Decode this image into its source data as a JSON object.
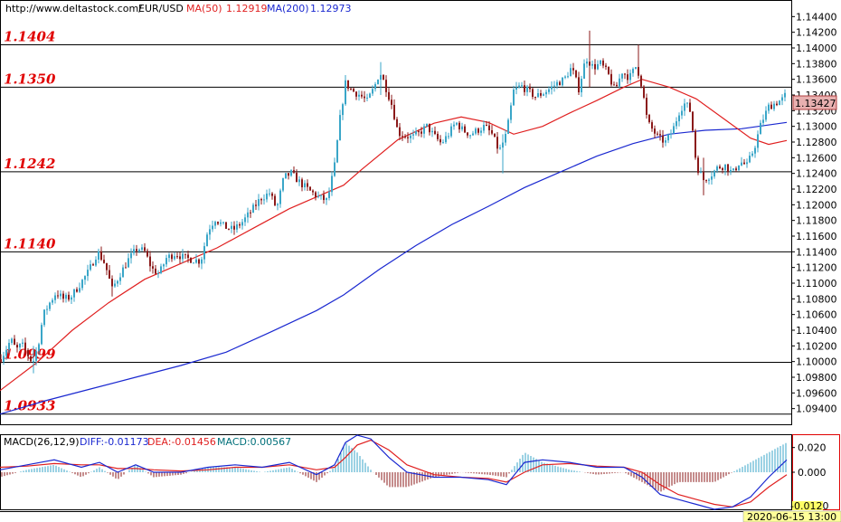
{
  "header": {
    "url": "http://www.deltastock.com/",
    "symbol": "EUR/USD",
    "ma50_label": "MA(50)",
    "ma50_value": "1.12919",
    "ma200_label": "MA(200)",
    "ma200_value": "1.12973"
  },
  "macd_header": {
    "name": "MACD(26,12,9)",
    "diff": "DIFF:-0.01173",
    "dea": "DEA:-0.01456",
    "macd": "MACD:0.00567"
  },
  "current_price_label": "1.13427",
  "timestamp": "2020-06-15 13:00",
  "macd_clip_label": "-0.0120",
  "colors": {
    "up": "#3aa6c8",
    "down": "#8b1a1a",
    "ma50": "#e02020",
    "ma200": "#1a28d0",
    "level_text": "#e00000",
    "price_box": "#e8b0b0",
    "ts_box": "#ffff99"
  },
  "chart_data": [
    {
      "type": "candlestick",
      "ylim": [
        1.092,
        1.146
      ],
      "yticks": [
        "1.14400",
        "1.14200",
        "1.14000",
        "1.13800",
        "1.13600",
        "1.13400",
        "1.13200",
        "1.13000",
        "1.12800",
        "1.12600",
        "1.12400",
        "1.12200",
        "1.12000",
        "1.11800",
        "1.11600",
        "1.11400",
        "1.11200",
        "1.11000",
        "1.10800",
        "1.10600",
        "1.10400",
        "1.10200",
        "1.10000",
        "1.09800",
        "1.09600",
        "1.09400"
      ],
      "levels": [
        {
          "label": "1.1404",
          "value": 1.1404
        },
        {
          "label": "1.1350",
          "value": 1.135
        },
        {
          "label": "1.1242",
          "value": 1.1242
        },
        {
          "label": "1.1140",
          "value": 1.114
        },
        {
          "label": "1.0999",
          "value": 1.0999
        },
        {
          "label": "1.0933",
          "value": 1.0933
        }
      ],
      "price_path": [
        [
          0,
          1.1003
        ],
        [
          5,
          1.1012
        ],
        [
          12,
          1.1028
        ],
        [
          18,
          1.1015
        ],
        [
          24,
          1.1022
        ],
        [
          30,
          1.101
        ],
        [
          36,
          1.0998
        ],
        [
          42,
          1.102
        ],
        [
          48,
          1.106
        ],
        [
          55,
          1.1075
        ],
        [
          62,
          1.1088
        ],
        [
          70,
          1.108
        ],
        [
          78,
          1.1082
        ],
        [
          88,
          1.1098
        ],
        [
          98,
          1.1115
        ],
        [
          108,
          1.114
        ],
        [
          116,
          1.1125
        ],
        [
          124,
          1.1092
        ],
        [
          132,
          1.111
        ],
        [
          142,
          1.113
        ],
        [
          152,
          1.1145
        ],
        [
          160,
          1.114
        ],
        [
          168,
          1.1118
        ],
        [
          176,
          1.1112
        ],
        [
          184,
          1.1132
        ],
        [
          194,
          1.1138
        ],
        [
          204,
          1.1132
        ],
        [
          214,
          1.113
        ],
        [
          222,
          1.1128
        ],
        [
          230,
          1.1168
        ],
        [
          238,
          1.1182
        ],
        [
          248,
          1.1172
        ],
        [
          258,
          1.1168
        ],
        [
          268,
          1.1178
        ],
        [
          278,
          1.1192
        ],
        [
          288,
          1.1208
        ],
        [
          298,
          1.1215
        ],
        [
          306,
          1.1195
        ],
        [
          314,
          1.1235
        ],
        [
          322,
          1.124
        ],
        [
          332,
          1.1228
        ],
        [
          342,
          1.1218
        ],
        [
          352,
          1.121
        ],
        [
          362,
          1.1205
        ],
        [
          370,
          1.125
        ],
        [
          376,
          1.131
        ],
        [
          382,
          1.1355
        ],
        [
          390,
          1.1345
        ],
        [
          398,
          1.134
        ],
        [
          406,
          1.1332
        ],
        [
          414,
          1.135
        ],
        [
          420,
          1.137
        ],
        [
          426,
          1.1352
        ],
        [
          434,
          1.1325
        ],
        [
          440,
          1.1292
        ],
        [
          448,
          1.1288
        ],
        [
          456,
          1.1286
        ],
        [
          464,
          1.1292
        ],
        [
          472,
          1.13
        ],
        [
          480,
          1.1288
        ],
        [
          488,
          1.1278
        ],
        [
          496,
          1.129
        ],
        [
          504,
          1.1305
        ],
        [
          512,
          1.1295
        ],
        [
          520,
          1.129
        ],
        [
          528,
          1.1295
        ],
        [
          536,
          1.13
        ],
        [
          544,
          1.129
        ],
        [
          552,
          1.1268
        ],
        [
          560,
          1.129
        ],
        [
          568,
          1.1345
        ],
        [
          576,
          1.1352
        ],
        [
          584,
          1.1345
        ],
        [
          592,
          1.1338
        ],
        [
          600,
          1.1342
        ],
        [
          608,
          1.1348
        ],
        [
          616,
          1.1355
        ],
        [
          624,
          1.136
        ],
        [
          632,
          1.1375
        ],
        [
          640,
          1.1348
        ],
        [
          648,
          1.1388
        ],
        [
          656,
          1.1375
        ],
        [
          664,
          1.138
        ],
        [
          672,
          1.1368
        ],
        [
          680,
          1.1345
        ],
        [
          688,
          1.137
        ],
        [
          696,
          1.1362
        ],
        [
          704,
          1.1378
        ],
        [
          710,
          1.135
        ],
        [
          716,
          1.1305
        ],
        [
          722,
          1.1295
        ],
        [
          728,
          1.1285
        ],
        [
          736,
          1.128
        ],
        [
          744,
          1.1295
        ],
        [
          752,
          1.1322
        ],
        [
          758,
          1.133
        ],
        [
          764,
          1.1318
        ],
        [
          770,
          1.125
        ],
        [
          778,
          1.1232
        ],
        [
          786,
          1.1238
        ],
        [
          794,
          1.1248
        ],
        [
          802,
          1.125
        ],
        [
          810,
          1.124
        ],
        [
          818,
          1.1255
        ],
        [
          826,
          1.125
        ],
        [
          834,
          1.1272
        ],
        [
          842,
          1.1305
        ],
        [
          850,
          1.1325
        ],
        [
          858,
          1.133
        ],
        [
          866,
          1.1335
        ],
        [
          870,
          1.1343
        ]
      ],
      "wicks": [
        {
          "x": 650,
          "high": 1.1422,
          "low": 1.135
        },
        {
          "x": 706,
          "high": 1.1404,
          "low": 1.1365
        },
        {
          "x": 420,
          "high": 1.1382,
          "low": 1.134
        },
        {
          "x": 554,
          "high": 1.129,
          "low": 1.124
        },
        {
          "x": 778,
          "high": 1.126,
          "low": 1.1212
        },
        {
          "x": 36,
          "high": 1.102,
          "low": 1.0985
        },
        {
          "x": 124,
          "high": 1.111,
          "low": 1.1083
        }
      ],
      "ma50": [
        [
          0,
          1.0963
        ],
        [
          40,
          1.0998
        ],
        [
          80,
          1.104
        ],
        [
          120,
          1.1075
        ],
        [
          160,
          1.1105
        ],
        [
          200,
          1.1125
        ],
        [
          240,
          1.1145
        ],
        [
          280,
          1.117
        ],
        [
          320,
          1.1195
        ],
        [
          360,
          1.1215
        ],
        [
          380,
          1.1225
        ],
        [
          400,
          1.1245
        ],
        [
          440,
          1.1283
        ],
        [
          480,
          1.1304
        ],
        [
          510,
          1.1312
        ],
        [
          540,
          1.1305
        ],
        [
          568,
          1.129
        ],
        [
          600,
          1.13
        ],
        [
          630,
          1.1317
        ],
        [
          660,
          1.1333
        ],
        [
          690,
          1.135
        ],
        [
          710,
          1.136
        ],
        [
          740,
          1.135
        ],
        [
          770,
          1.1335
        ],
        [
          800,
          1.131
        ],
        [
          830,
          1.1285
        ],
        [
          850,
          1.1277
        ],
        [
          870,
          1.1282
        ]
      ],
      "ma200": [
        [
          0,
          1.0933
        ],
        [
          50,
          1.095
        ],
        [
          100,
          1.0965
        ],
        [
          150,
          1.098
        ],
        [
          200,
          1.0995
        ],
        [
          250,
          1.1012
        ],
        [
          300,
          1.1038
        ],
        [
          350,
          1.1065
        ],
        [
          380,
          1.1085
        ],
        [
          420,
          1.1118
        ],
        [
          460,
          1.1148
        ],
        [
          500,
          1.1175
        ],
        [
          540,
          1.1198
        ],
        [
          580,
          1.1222
        ],
        [
          620,
          1.1242
        ],
        [
          660,
          1.1262
        ],
        [
          700,
          1.1278
        ],
        [
          740,
          1.129
        ],
        [
          780,
          1.1295
        ],
        [
          820,
          1.1297
        ],
        [
          870,
          1.1305
        ]
      ]
    },
    {
      "type": "macd",
      "ylim": [
        -0.03,
        0.03
      ],
      "yticks": [
        "0.020",
        "0.000"
      ],
      "diff": [
        [
          0,
          0.002
        ],
        [
          30,
          0.006
        ],
        [
          60,
          0.01
        ],
        [
          90,
          0.004
        ],
        [
          110,
          0.008
        ],
        [
          130,
          0.0
        ],
        [
          150,
          0.006
        ],
        [
          170,
          0.0
        ],
        [
          200,
          0.0
        ],
        [
          230,
          0.004
        ],
        [
          260,
          0.006
        ],
        [
          290,
          0.004
        ],
        [
          320,
          0.008
        ],
        [
          350,
          -0.002
        ],
        [
          370,
          0.006
        ],
        [
          382,
          0.024
        ],
        [
          395,
          0.03
        ],
        [
          410,
          0.027
        ],
        [
          430,
          0.012
        ],
        [
          450,
          0.0
        ],
        [
          480,
          -0.004
        ],
        [
          510,
          -0.004
        ],
        [
          540,
          -0.006
        ],
        [
          560,
          -0.01
        ],
        [
          580,
          0.008
        ],
        [
          600,
          0.01
        ],
        [
          630,
          0.008
        ],
        [
          660,
          0.004
        ],
        [
          690,
          0.004
        ],
        [
          710,
          -0.004
        ],
        [
          730,
          -0.018
        ],
        [
          750,
          -0.022
        ],
        [
          770,
          -0.026
        ],
        [
          790,
          -0.03
        ],
        [
          810,
          -0.028
        ],
        [
          830,
          -0.02
        ],
        [
          850,
          -0.004
        ],
        [
          870,
          0.01
        ]
      ],
      "dea": [
        [
          0,
          0.004
        ],
        [
          30,
          0.005
        ],
        [
          60,
          0.007
        ],
        [
          90,
          0.006
        ],
        [
          110,
          0.006
        ],
        [
          130,
          0.003
        ],
        [
          150,
          0.003
        ],
        [
          170,
          0.002
        ],
        [
          200,
          0.001
        ],
        [
          230,
          0.002
        ],
        [
          260,
          0.004
        ],
        [
          290,
          0.004
        ],
        [
          320,
          0.006
        ],
        [
          350,
          0.002
        ],
        [
          370,
          0.004
        ],
        [
          382,
          0.012
        ],
        [
          395,
          0.022
        ],
        [
          410,
          0.026
        ],
        [
          430,
          0.018
        ],
        [
          450,
          0.006
        ],
        [
          480,
          -0.002
        ],
        [
          510,
          -0.004
        ],
        [
          540,
          -0.005
        ],
        [
          560,
          -0.008
        ],
        [
          580,
          0.0
        ],
        [
          600,
          0.006
        ],
        [
          630,
          0.007
        ],
        [
          660,
          0.005
        ],
        [
          690,
          0.004
        ],
        [
          710,
          0.0
        ],
        [
          730,
          -0.01
        ],
        [
          750,
          -0.018
        ],
        [
          770,
          -0.022
        ],
        [
          790,
          -0.026
        ],
        [
          810,
          -0.028
        ],
        [
          830,
          -0.024
        ],
        [
          850,
          -0.012
        ],
        [
          870,
          -0.002
        ]
      ]
    }
  ]
}
